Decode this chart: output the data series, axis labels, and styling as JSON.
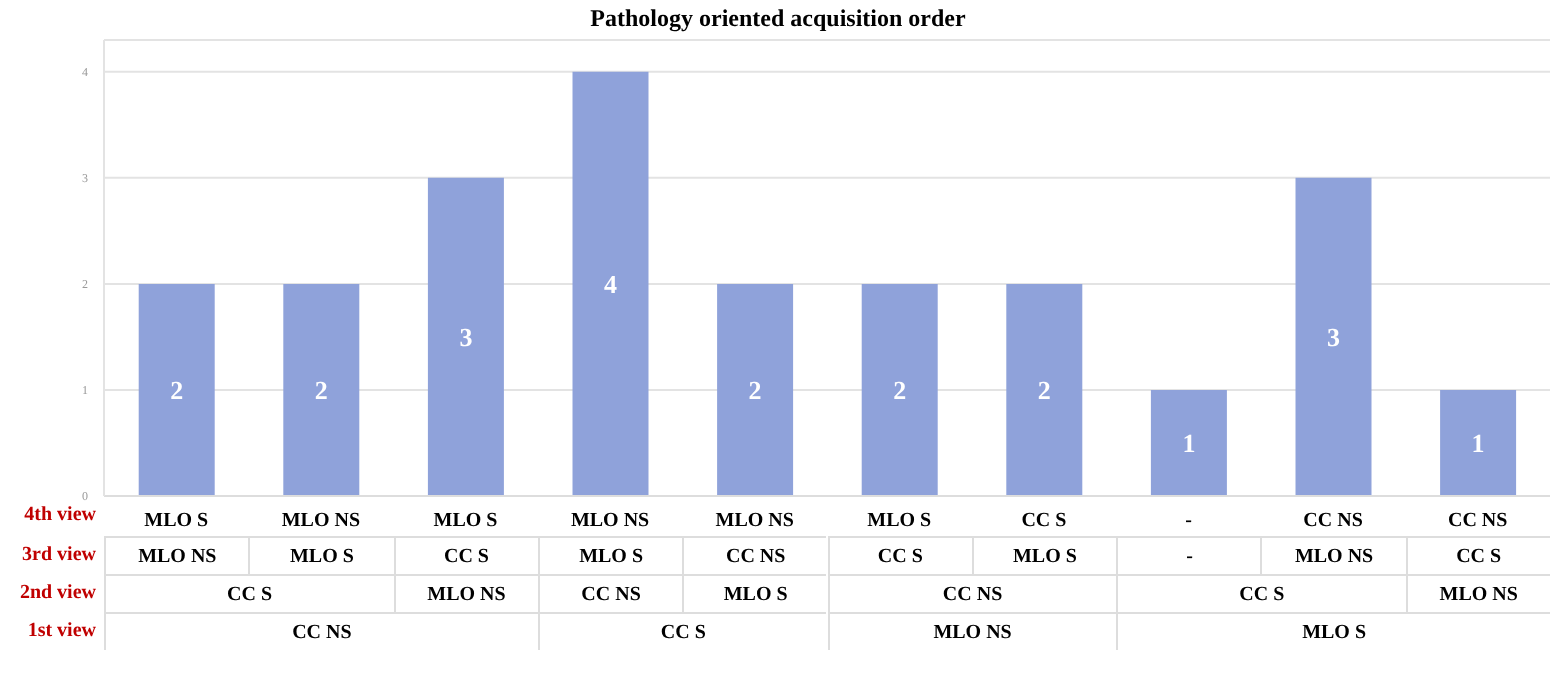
{
  "chart_data": {
    "type": "bar",
    "title": "Pathology oriented acquisition order",
    "categories": [
      "MLO S",
      "MLO NS",
      "MLO S",
      "MLO NS",
      "MLO NS",
      "MLO S",
      "CC S",
      "-",
      "CC NS",
      "CC NS"
    ],
    "values": [
      2,
      2,
      3,
      4,
      2,
      2,
      2,
      1,
      3,
      1
    ],
    "color": "#8fa2da",
    "ylim": [
      0,
      4.3
    ],
    "yticks": [
      0,
      1,
      2,
      3,
      4
    ],
    "grid": "y",
    "data_labels": true,
    "annotations": [
      "4th view",
      "3rd view",
      "MLO NS",
      "MLO S",
      "CC S",
      "MLO S",
      "CC NS",
      "CC S",
      "MLO S",
      "-",
      "MLO NS",
      "CC S",
      "2nd view",
      "CC S",
      "MLO NS",
      "CC NS",
      "MLO S",
      "CC NS",
      "CC S",
      "MLO NS",
      "1st view",
      "CC NS",
      "CC S",
      "MLO NS",
      "MLO S"
    ]
  }
}
